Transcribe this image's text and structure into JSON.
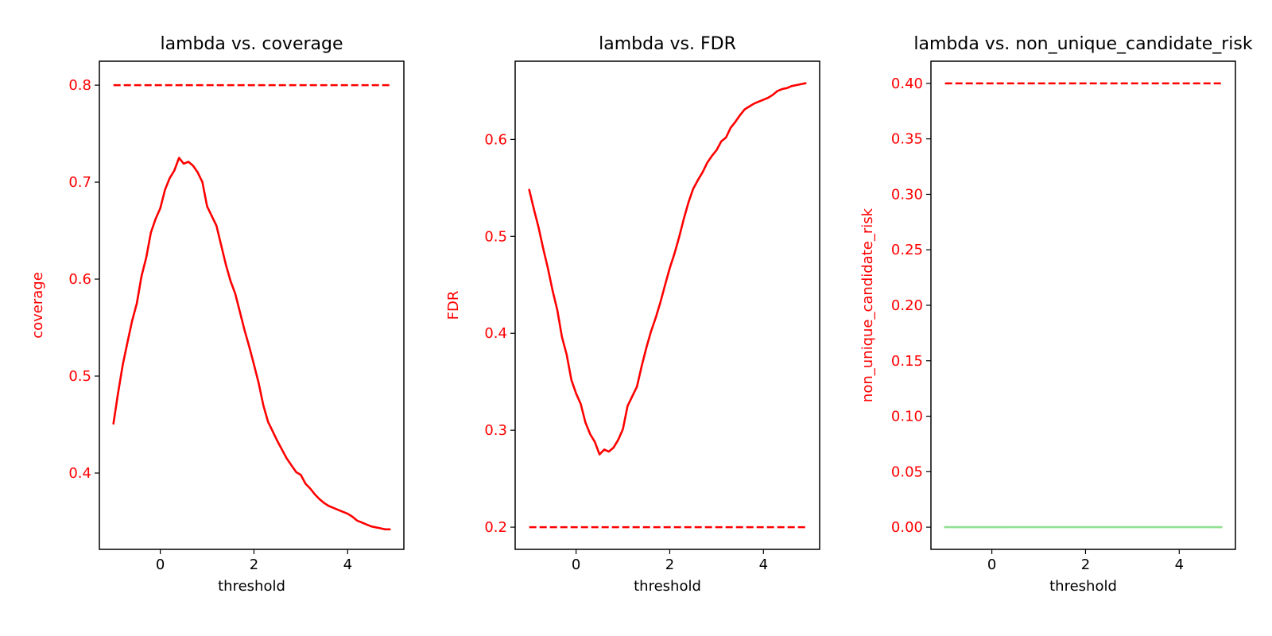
{
  "chart_data": [
    {
      "type": "line",
      "title": "lambda vs. coverage",
      "xlabel": "threshold",
      "ylabel": "coverage",
      "xlim": [
        -1.3,
        5.2
      ],
      "ylim": [
        0.3213,
        0.8247
      ],
      "xticks": [
        0,
        2,
        4
      ],
      "yticks": [
        0.4,
        0.5,
        0.6,
        0.7,
        0.8
      ],
      "ytick_decimals": 1,
      "grid": false,
      "colors": {
        "axis_label": "#ff0000",
        "tick_label": "#ff0000"
      },
      "series": [
        {
          "color": "#ff0000",
          "style": "solid",
          "x": [
            -1.0,
            -0.9,
            -0.8,
            -0.7,
            -0.6,
            -0.5,
            -0.4,
            -0.3,
            -0.2,
            -0.1,
            0.0,
            0.1,
            0.2,
            0.3,
            0.4,
            0.5,
            0.6,
            0.7,
            0.8,
            0.9,
            1.0,
            1.1,
            1.2,
            1.3,
            1.4,
            1.5,
            1.6,
            1.7,
            1.8,
            1.9,
            2.0,
            2.1,
            2.2,
            2.3,
            2.4,
            2.5,
            2.6,
            2.7,
            2.8,
            2.9,
            3.0,
            3.1,
            3.2,
            3.3,
            3.4,
            3.5,
            3.6,
            3.7,
            3.8,
            3.9,
            4.0,
            4.1,
            4.2,
            4.3,
            4.4,
            4.5,
            4.6,
            4.7,
            4.8,
            4.9
          ],
          "y": [
            0.451,
            0.483,
            0.512,
            0.535,
            0.557,
            0.575,
            0.603,
            0.622,
            0.648,
            0.662,
            0.673,
            0.692,
            0.704,
            0.712,
            0.725,
            0.719,
            0.721,
            0.717,
            0.71,
            0.7,
            0.675,
            0.665,
            0.655,
            0.635,
            0.615,
            0.598,
            0.585,
            0.566,
            0.547,
            0.53,
            0.512,
            0.493,
            0.47,
            0.453,
            0.443,
            0.433,
            0.424,
            0.415,
            0.408,
            0.401,
            0.398,
            0.389,
            0.384,
            0.378,
            0.373,
            0.369,
            0.366,
            0.364,
            0.362,
            0.36,
            0.358,
            0.355,
            0.351,
            0.349,
            0.347,
            0.345,
            0.344,
            0.343,
            0.342,
            0.342
          ]
        },
        {
          "color": "#ff0000",
          "style": "dashed",
          "x": [
            -1.0,
            4.9
          ],
          "y": [
            0.8,
            0.8
          ]
        }
      ]
    },
    {
      "type": "line",
      "title": "lambda vs. FDR",
      "xlabel": "threshold",
      "ylabel": "FDR",
      "xlim": [
        -1.3,
        5.2
      ],
      "ylim": [
        0.1771,
        0.6807
      ],
      "xticks": [
        0,
        2,
        4
      ],
      "yticks": [
        0.2,
        0.3,
        0.4,
        0.5,
        0.6
      ],
      "ytick_decimals": 1,
      "grid": false,
      "colors": {
        "axis_label": "#ff0000",
        "tick_label": "#ff0000"
      },
      "series": [
        {
          "color": "#ff0000",
          "style": "solid",
          "x": [
            -1.0,
            -0.9,
            -0.8,
            -0.7,
            -0.6,
            -0.5,
            -0.4,
            -0.3,
            -0.2,
            -0.1,
            0.0,
            0.1,
            0.2,
            0.3,
            0.4,
            0.5,
            0.6,
            0.7,
            0.8,
            0.9,
            1.0,
            1.1,
            1.2,
            1.3,
            1.4,
            1.5,
            1.6,
            1.7,
            1.8,
            1.9,
            2.0,
            2.1,
            2.2,
            2.3,
            2.4,
            2.5,
            2.6,
            2.7,
            2.8,
            2.9,
            3.0,
            3.1,
            3.2,
            3.3,
            3.4,
            3.5,
            3.6,
            3.7,
            3.8,
            3.9,
            4.0,
            4.1,
            4.2,
            4.3,
            4.4,
            4.5,
            4.6,
            4.7,
            4.8,
            4.9
          ],
          "y": [
            0.548,
            0.528,
            0.509,
            0.487,
            0.467,
            0.444,
            0.424,
            0.396,
            0.378,
            0.352,
            0.338,
            0.327,
            0.308,
            0.296,
            0.288,
            0.275,
            0.28,
            0.278,
            0.282,
            0.29,
            0.301,
            0.325,
            0.335,
            0.345,
            0.366,
            0.385,
            0.402,
            0.416,
            0.432,
            0.45,
            0.467,
            0.482,
            0.499,
            0.518,
            0.535,
            0.549,
            0.558,
            0.566,
            0.576,
            0.583,
            0.589,
            0.598,
            0.602,
            0.612,
            0.618,
            0.625,
            0.631,
            0.634,
            0.637,
            0.639,
            0.641,
            0.643,
            0.646,
            0.65,
            0.652,
            0.653,
            0.655,
            0.656,
            0.657,
            0.658
          ]
        },
        {
          "color": "#ff0000",
          "style": "dashed",
          "x": [
            -1.0,
            4.9
          ],
          "y": [
            0.2,
            0.2
          ]
        }
      ]
    },
    {
      "type": "line",
      "title": "lambda vs. non_unique_candidate_risk",
      "xlabel": "threshold",
      "ylabel": "non_unique_candidate_risk",
      "xlim": [
        -1.3,
        5.2
      ],
      "ylim": [
        -0.02,
        0.42
      ],
      "xticks": [
        0,
        2,
        4
      ],
      "yticks": [
        0.0,
        0.05,
        0.1,
        0.15,
        0.2,
        0.25,
        0.3,
        0.35,
        0.4
      ],
      "ytick_decimals": 2,
      "grid": false,
      "colors": {
        "axis_label": "#ff0000",
        "tick_label": "#ff0000"
      },
      "series": [
        {
          "color": "#90e090",
          "style": "solid",
          "x": [
            -1.0,
            4.9
          ],
          "y": [
            0.0,
            0.0
          ]
        },
        {
          "color": "#ff0000",
          "style": "dashed",
          "x": [
            -1.0,
            4.9
          ],
          "y": [
            0.4,
            0.4
          ]
        }
      ]
    }
  ]
}
